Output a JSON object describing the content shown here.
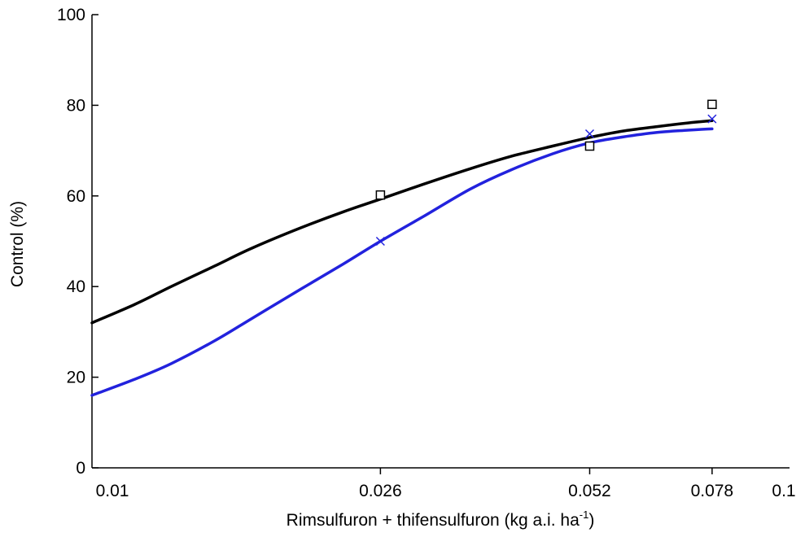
{
  "chart_data": {
    "type": "line",
    "title": "",
    "xlabel_prefix": "Rimsulfuron + thifensulfuron (kg a.i. ha",
    "xlabel_exponent": "-1",
    "xlabel_suffix": ")",
    "ylabel": "Control (%)",
    "xlim": [
      0.01,
      0.1
    ],
    "ylim": [
      0,
      100
    ],
    "x_scale": "log",
    "x_ticks": [
      {
        "value": 0.01,
        "label": "0.01"
      },
      {
        "value": 0.026,
        "label": "0.026"
      },
      {
        "value": 0.052,
        "label": "0.052"
      },
      {
        "value": 0.078,
        "label": "0.078"
      },
      {
        "value": 0.1,
        "label": "0.1"
      }
    ],
    "y_ticks": [
      {
        "value": 0,
        "label": "0"
      },
      {
        "value": 20,
        "label": "20"
      },
      {
        "value": 40,
        "label": "40"
      },
      {
        "value": 60,
        "label": "60"
      },
      {
        "value": 80,
        "label": "80"
      },
      {
        "value": 100,
        "label": "100"
      }
    ],
    "grid": false,
    "legend": "none",
    "series": [
      {
        "marker": "square",
        "color": "#000000",
        "points": [
          {
            "x": 0.026,
            "y": 60.2
          },
          {
            "x": 0.052,
            "y": 71.0
          },
          {
            "x": 0.078,
            "y": 80.2
          }
        ],
        "fit_curve": [
          {
            "x": 0.01,
            "y": 32.0
          },
          {
            "x": 0.0115,
            "y": 36.0
          },
          {
            "x": 0.013,
            "y": 40.0
          },
          {
            "x": 0.015,
            "y": 44.5
          },
          {
            "x": 0.017,
            "y": 48.5
          },
          {
            "x": 0.02,
            "y": 53.0
          },
          {
            "x": 0.023,
            "y": 56.5
          },
          {
            "x": 0.026,
            "y": 59.3
          },
          {
            "x": 0.03,
            "y": 62.6
          },
          {
            "x": 0.035,
            "y": 66.0
          },
          {
            "x": 0.04,
            "y": 68.7
          },
          {
            "x": 0.046,
            "y": 71.0
          },
          {
            "x": 0.052,
            "y": 72.9
          },
          {
            "x": 0.058,
            "y": 74.3
          },
          {
            "x": 0.065,
            "y": 75.3
          },
          {
            "x": 0.072,
            "y": 76.1
          },
          {
            "x": 0.078,
            "y": 76.6
          }
        ]
      },
      {
        "marker": "x",
        "color": "#2222dd",
        "points": [
          {
            "x": 0.026,
            "y": 50.0
          },
          {
            "x": 0.052,
            "y": 73.7
          },
          {
            "x": 0.078,
            "y": 77.0
          }
        ],
        "fit_curve": [
          {
            "x": 0.01,
            "y": 16.0
          },
          {
            "x": 0.0115,
            "y": 19.5
          },
          {
            "x": 0.013,
            "y": 23.0
          },
          {
            "x": 0.015,
            "y": 28.0
          },
          {
            "x": 0.017,
            "y": 33.0
          },
          {
            "x": 0.02,
            "y": 39.5
          },
          {
            "x": 0.023,
            "y": 45.0
          },
          {
            "x": 0.026,
            "y": 50.0
          },
          {
            "x": 0.03,
            "y": 55.5
          },
          {
            "x": 0.035,
            "y": 61.5
          },
          {
            "x": 0.04,
            "y": 65.7
          },
          {
            "x": 0.046,
            "y": 69.3
          },
          {
            "x": 0.052,
            "y": 71.7
          },
          {
            "x": 0.058,
            "y": 73.0
          },
          {
            "x": 0.065,
            "y": 74.0
          },
          {
            "x": 0.072,
            "y": 74.5
          },
          {
            "x": 0.078,
            "y": 74.8
          }
        ]
      }
    ]
  }
}
